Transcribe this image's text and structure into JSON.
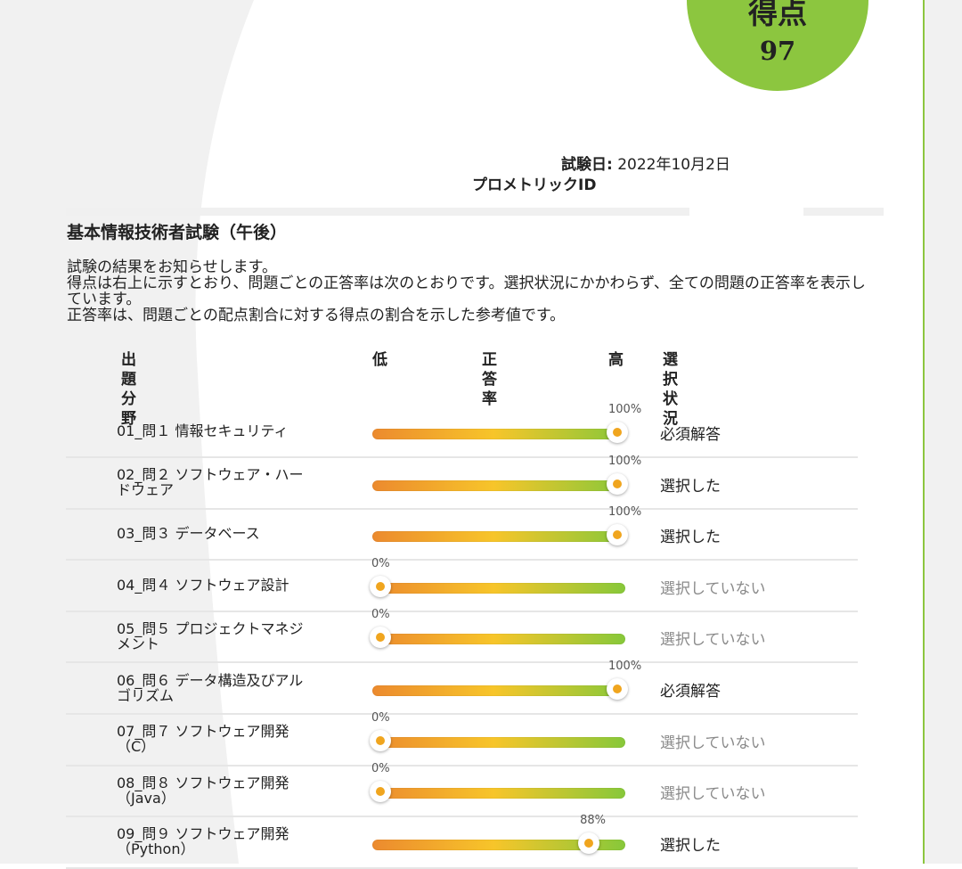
{
  "score": {
    "label": "得点",
    "value": "97"
  },
  "exam_info": {
    "date_label": "試験日:",
    "date_value": " 2022年10月2日",
    "id_label": "プロメトリックID"
  },
  "exam_title": "基本情報技術者試験（午後）",
  "intro": [
    "試験の結果をお知らせします。",
    "得点は右上に示すとおり、問題ごとの正答率は次のとおりです。選択状況にかかわらず、全ての問題の正答率を表示しています。",
    "正答率は、問題ごとの配点割合に対する得点の割合を示した参考値です。"
  ],
  "table_headers": {
    "category": "出題分野",
    "low": "低",
    "rate": "正答率",
    "high": "高",
    "status": "選択状況"
  },
  "colors": {
    "accent_green": "#8cc63f",
    "knob_orange": "#f0a51e",
    "bar_start": "#ec8a2e",
    "bar_mid": "#f7c52a",
    "bar_end": "#87c83a"
  },
  "rows": [
    {
      "category": "01_問１ 情報セキュリティ",
      "percent": "100%",
      "rate": 1.0,
      "status": "必須解答",
      "selected": true
    },
    {
      "category": "02_問２ ソフトウェア・ハードウェア",
      "percent": "100%",
      "rate": 1.0,
      "status": "選択した",
      "selected": true
    },
    {
      "category": "03_問３ データベース",
      "percent": "100%",
      "rate": 1.0,
      "status": "選択した",
      "selected": true
    },
    {
      "category": "04_問４ ソフトウェア設計",
      "percent": "0%",
      "rate": 0.0,
      "status": "選択していない",
      "selected": false
    },
    {
      "category": "05_問５ プロジェクトマネジメント",
      "percent": "0%",
      "rate": 0.0,
      "status": "選択していない",
      "selected": false
    },
    {
      "category": "06_問６ データ構造及びアルゴリズム",
      "percent": "100%",
      "rate": 1.0,
      "status": "必須解答",
      "selected": true
    },
    {
      "category": "07_問７ ソフトウェア開発（C）",
      "percent": "0%",
      "rate": 0.0,
      "status": "選択していない",
      "selected": false
    },
    {
      "category": "08_問８ ソフトウェア開発（Java）",
      "percent": "0%",
      "rate": 0.0,
      "status": "選択していない",
      "selected": false
    },
    {
      "category": "09_問９ ソフトウェア開発（Python）",
      "percent": "88%",
      "rate": 0.88,
      "status": "選択した",
      "selected": true
    }
  ]
}
